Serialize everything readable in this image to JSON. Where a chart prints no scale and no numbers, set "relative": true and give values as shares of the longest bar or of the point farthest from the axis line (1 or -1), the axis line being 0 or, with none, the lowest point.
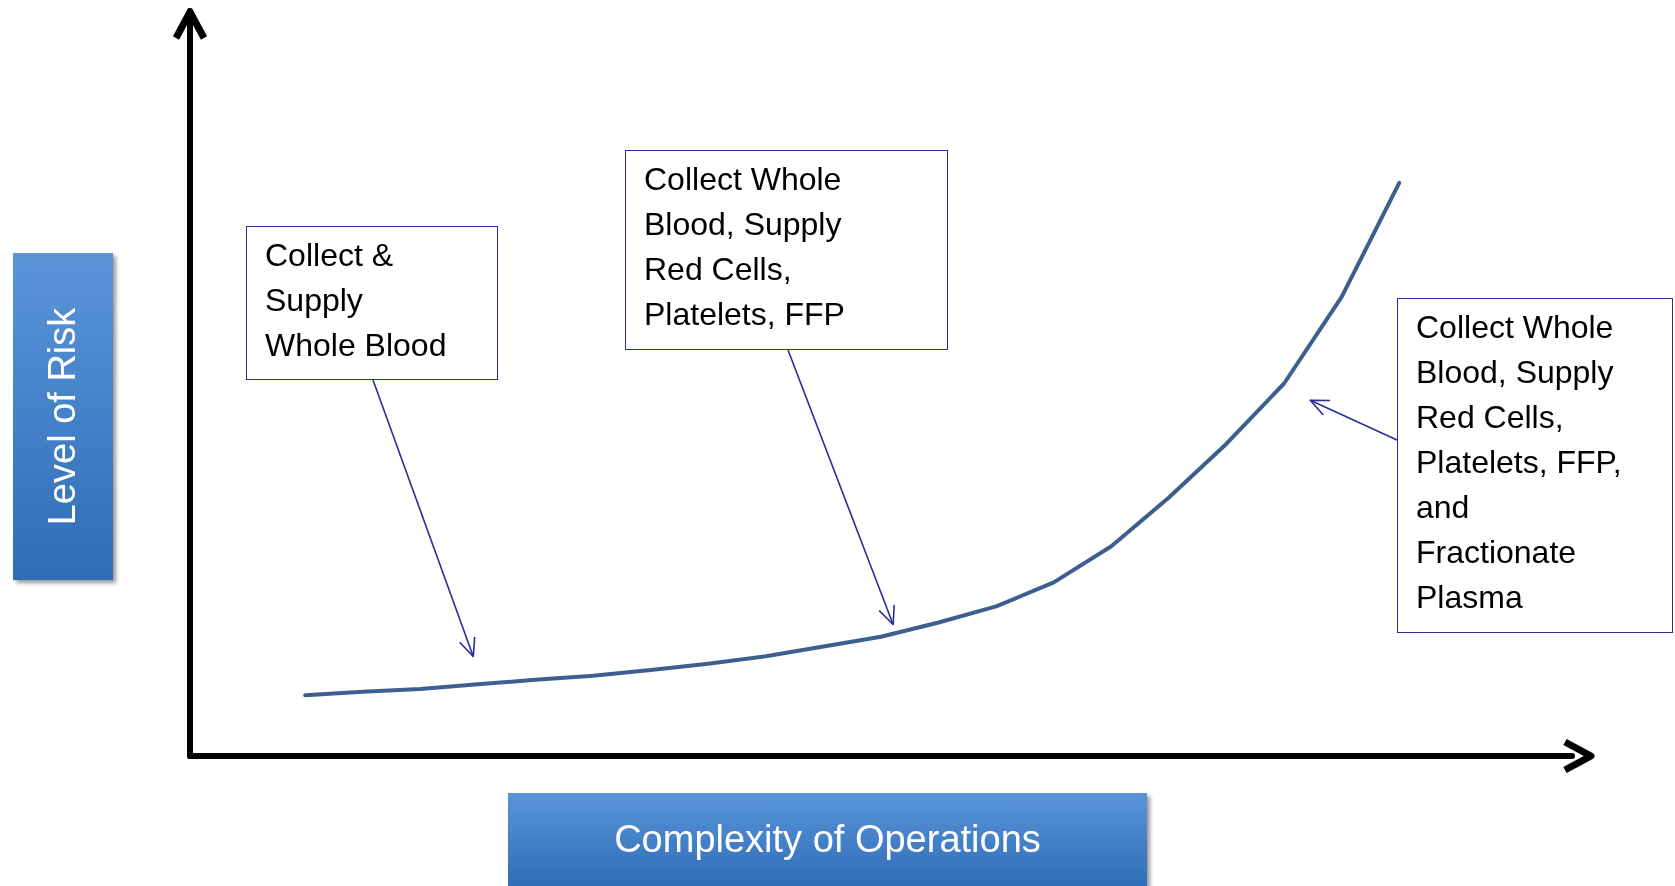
{
  "chart_data": {
    "type": "line",
    "relative": true,
    "grid": false,
    "marker": "none",
    "xlabel": "Complexity of Operations",
    "ylabel": "Level of Risk",
    "categories": [
      null,
      null,
      null,
      null,
      null,
      null,
      null,
      null,
      null,
      null,
      null,
      null,
      null,
      null,
      null,
      null,
      null,
      null,
      null,
      null,
      null,
      null,
      null,
      null,
      null
    ],
    "series": [
      {
        "color": "#3d5f8f",
        "values": [
          null,
          null,
          0.106,
          0.112,
          0.117,
          0.125,
          0.133,
          0.14,
          0.15,
          0.161,
          0.174,
          0.191,
          0.208,
          0.233,
          0.261,
          0.303,
          0.366,
          0.451,
          0.545,
          0.65,
          0.801,
          1,
          null,
          null,
          null
        ]
      }
    ],
    "annotations": [
      "Collect & Supply Whole Blood",
      "Collect Whole Blood, Supply Red Cells, Platelets, FFP",
      "Collect Whole Blood, Supply Red Cells, Platelets, FFP, and Fractionate Plasma"
    ]
  }
}
